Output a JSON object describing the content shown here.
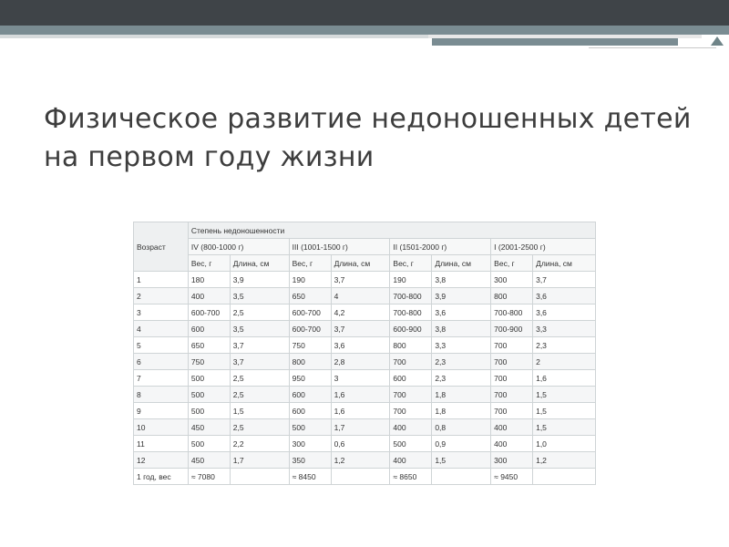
{
  "slide": {
    "title": "Физическое развитие недоношенных детей на первом году жизни"
  },
  "table": {
    "age_header": "Возраст",
    "degree_header": "Степень недоношенности",
    "groups": [
      "IV (800-1000 г)",
      "III (1001-1500 г)",
      "II (1501-2000 г)",
      "I (2001-2500 г)"
    ],
    "weight_label": "Вес, г",
    "length_label": "Длина, см",
    "rows": [
      [
        "1",
        "180",
        "3,9",
        "190",
        "3,7",
        "190",
        "3,8",
        "300",
        "3,7"
      ],
      [
        "2",
        "400",
        "3,5",
        "650",
        "4",
        "700-800",
        "3,9",
        "800",
        "3,6"
      ],
      [
        "3",
        "600-700",
        "2,5",
        "600-700",
        "4,2",
        "700-800",
        "3,6",
        "700-800",
        "3,6"
      ],
      [
        "4",
        "600",
        "3,5",
        "600-700",
        "3,7",
        "600-900",
        "3,8",
        "700-900",
        "3,3"
      ],
      [
        "5",
        "650",
        "3,7",
        "750",
        "3,6",
        "800",
        "3,3",
        "700",
        "2,3"
      ],
      [
        "6",
        "750",
        "3,7",
        "800",
        "2,8",
        "700",
        "2,3",
        "700",
        "2"
      ],
      [
        "7",
        "500",
        "2,5",
        "950",
        "3",
        "600",
        "2,3",
        "700",
        "1,6"
      ],
      [
        "8",
        "500",
        "2,5",
        "600",
        "1,6",
        "700",
        "1,8",
        "700",
        "1,5"
      ],
      [
        "9",
        "500",
        "1,5",
        "600",
        "1,6",
        "700",
        "1,8",
        "700",
        "1,5"
      ],
      [
        "10",
        "450",
        "2,5",
        "500",
        "1,7",
        "400",
        "0,8",
        "400",
        "1,5"
      ],
      [
        "11",
        "500",
        "2,2",
        "300",
        "0,6",
        "500",
        "0,9",
        "400",
        "1,0"
      ],
      [
        "12",
        "450",
        "1,7",
        "350",
        "1,2",
        "400",
        "1,5",
        "300",
        "1,2"
      ],
      [
        "1 год, вес",
        "≈ 7080",
        "",
        "≈ 8450",
        "",
        "≈ 8650",
        "",
        "≈ 9450",
        ""
      ]
    ]
  }
}
